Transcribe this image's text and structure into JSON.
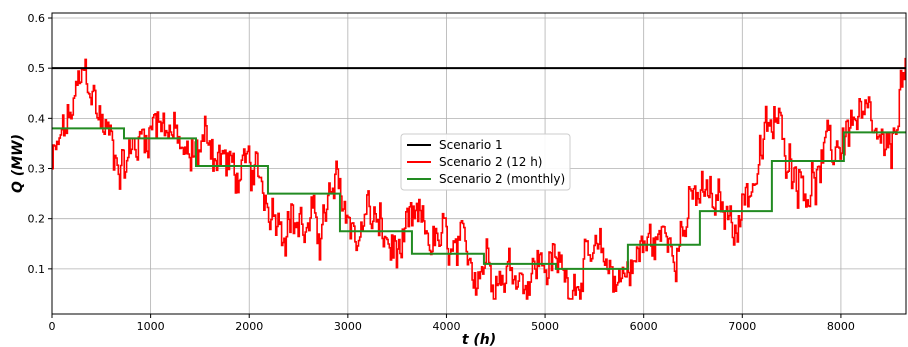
{
  "chart_data": {
    "type": "line",
    "xlabel": "t (h)",
    "ylabel": "Q (MW)",
    "xlim": [
      0,
      8660
    ],
    "ylim": [
      0.01,
      0.61
    ],
    "xticks": [
      0,
      1000,
      2000,
      3000,
      4000,
      5000,
      6000,
      7000,
      8000
    ],
    "yticks": [
      0.1,
      0.2,
      0.3,
      0.4,
      0.5,
      0.6
    ],
    "xtick_labels": [
      "0",
      "1000",
      "2000",
      "3000",
      "4000",
      "5000",
      "6000",
      "7000",
      "8000"
    ],
    "ytick_labels": [
      "0.1",
      "0.2",
      "0.3",
      "0.4",
      "0.5",
      "0.6"
    ],
    "grid": true,
    "legend_position": "center",
    "series": [
      {
        "name": "Scenario 1",
        "color": "#000000",
        "kind": "constant",
        "value": 0.5
      },
      {
        "name": "Scenario 2 (12 h)",
        "color": "#ff0000",
        "kind": "noisy",
        "x": [
          0,
          150,
          280,
          350,
          450,
          600,
          750,
          900,
          1000,
          1100,
          1200,
          1300,
          1400,
          1500,
          1600,
          1700,
          1800,
          1900,
          2000,
          2100,
          2200,
          2300,
          2400,
          2500,
          2600,
          2700,
          2800,
          2900,
          3000,
          3100,
          3200,
          3300,
          3400,
          3500,
          3600,
          3700,
          3800,
          3900,
          4000,
          4100,
          4200,
          4300,
          4400,
          4500,
          4600,
          4700,
          4800,
          4900,
          5000,
          5100,
          5200,
          5300,
          5400,
          5500,
          5600,
          5700,
          5800,
          5900,
          6000,
          6100,
          6200,
          6300,
          6400,
          6500,
          6600,
          6700,
          6800,
          6900,
          7000,
          7100,
          7200,
          7300,
          7400,
          7500,
          7600,
          7700,
          7800,
          7900,
          8000,
          8100,
          8200,
          8300,
          8400,
          8500,
          8600,
          8660
        ],
        "values": [
          0.3,
          0.38,
          0.45,
          0.48,
          0.42,
          0.35,
          0.32,
          0.36,
          0.4,
          0.42,
          0.38,
          0.33,
          0.3,
          0.35,
          0.36,
          0.33,
          0.3,
          0.28,
          0.27,
          0.26,
          0.24,
          0.23,
          0.22,
          0.2,
          0.17,
          0.18,
          0.22,
          0.24,
          0.2,
          0.17,
          0.22,
          0.18,
          0.14,
          0.13,
          0.14,
          0.17,
          0.16,
          0.15,
          0.13,
          0.1,
          0.1,
          0.12,
          0.14,
          0.12,
          0.1,
          0.11,
          0.1,
          0.11,
          0.12,
          0.1,
          0.09,
          0.1,
          0.11,
          0.09,
          0.1,
          0.09,
          0.1,
          0.12,
          0.14,
          0.15,
          0.16,
          0.18,
          0.2,
          0.22,
          0.24,
          0.22,
          0.2,
          0.2,
          0.24,
          0.28,
          0.33,
          0.38,
          0.36,
          0.33,
          0.3,
          0.28,
          0.3,
          0.32,
          0.36,
          0.4,
          0.38,
          0.35,
          0.32,
          0.28,
          0.48,
          0.5
        ]
      },
      {
        "name": "Scenario 2 (monthly)",
        "color": "#228b22",
        "kind": "step",
        "x": [
          0,
          730,
          1460,
          2190,
          2920,
          3650,
          4380,
          5110,
          5840,
          6570,
          7300,
          8030,
          8660
        ],
        "values": [
          0.38,
          0.36,
          0.305,
          0.25,
          0.175,
          0.13,
          0.11,
          0.1,
          0.148,
          0.215,
          0.315,
          0.372,
          0.372
        ]
      }
    ]
  }
}
